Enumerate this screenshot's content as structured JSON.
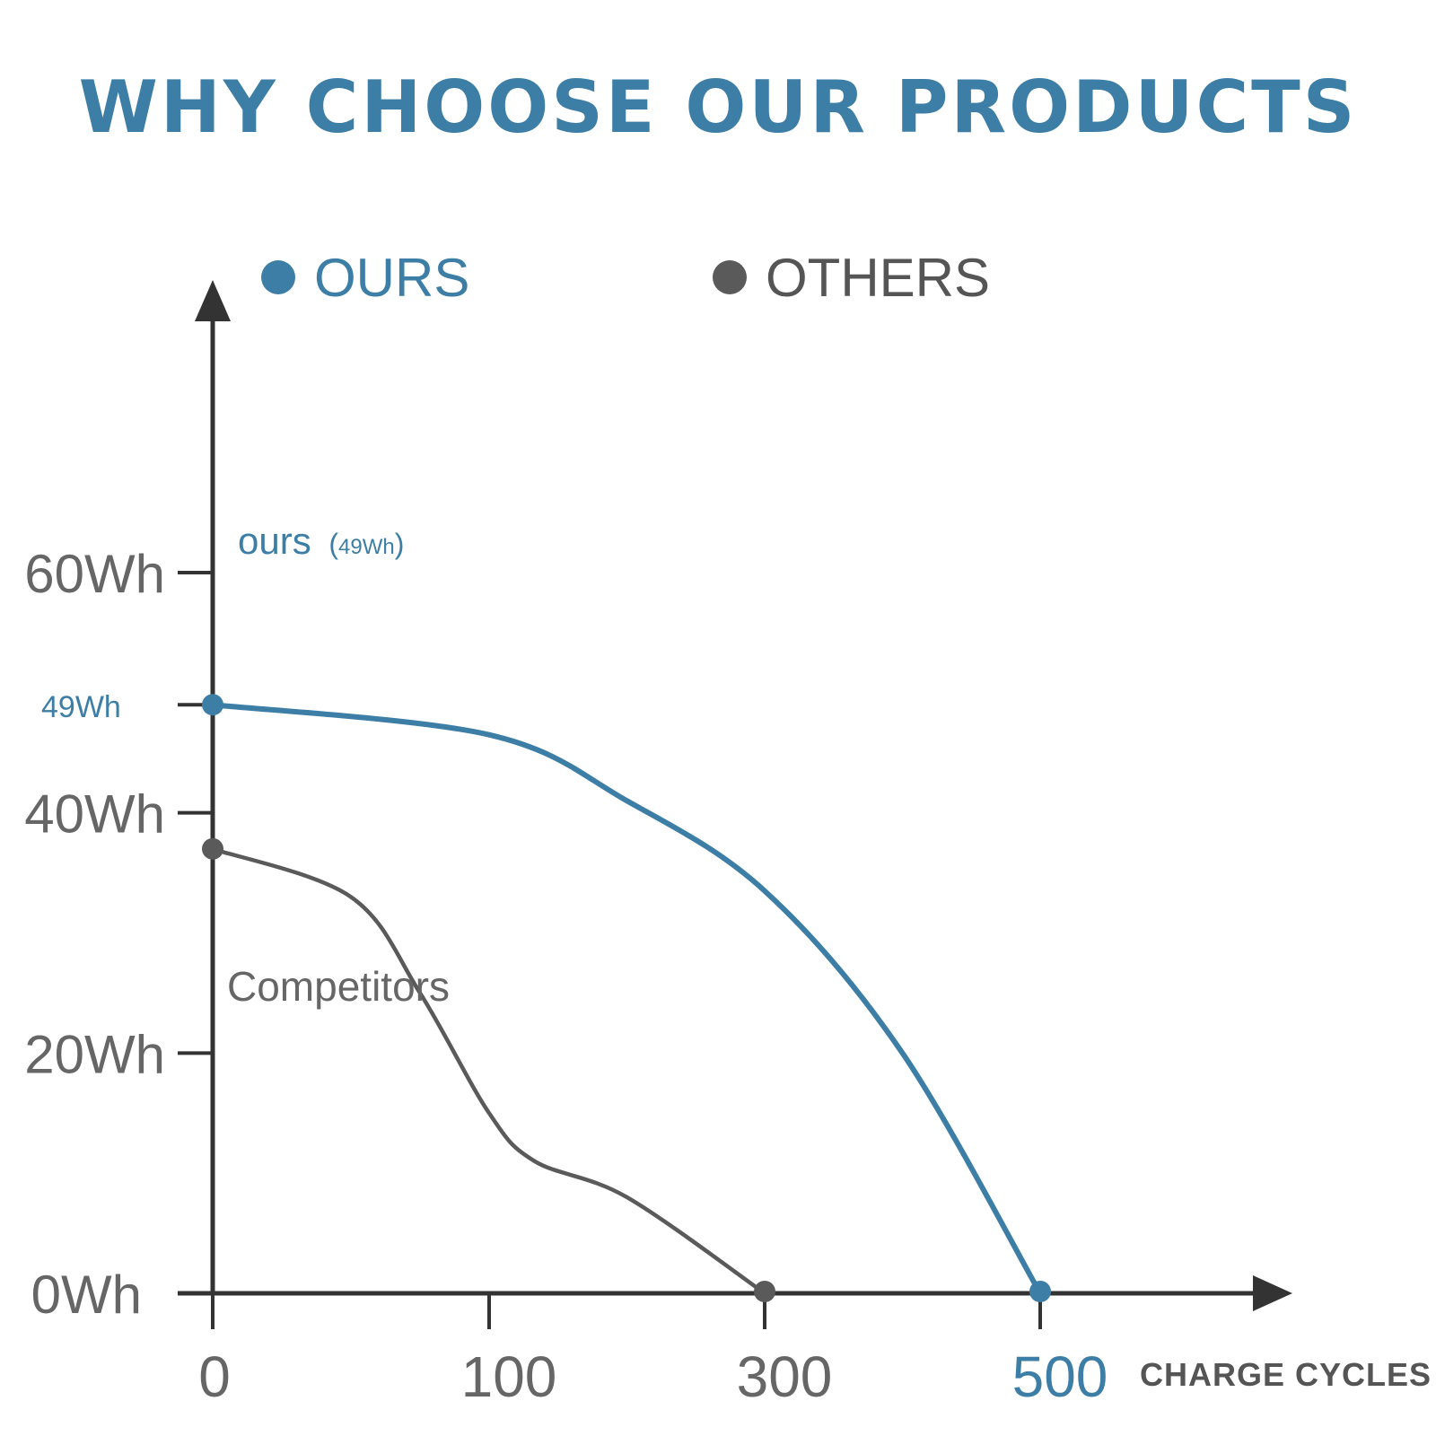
{
  "colors": {
    "ours": "#3d7ea6",
    "others": "#5a5a5a",
    "axis": "#333333",
    "grid": "#d9d9d9",
    "tick_text": "#666666"
  },
  "chart_data": {
    "type": "line",
    "title": "WHY CHOOSE OUR PRODUCTS",
    "xlabel": "CHARGE CYCLES",
    "ylabel": "",
    "x_ticks": [
      "0",
      "100",
      "300",
      "500"
    ],
    "y_ticks": [
      "0Wh",
      "20Wh",
      "40Wh",
      "60Wh"
    ],
    "y_marker_label": "49Wh",
    "grid": true,
    "legend": {
      "placement": "top",
      "entries": [
        "OURS",
        "OTHERS"
      ]
    },
    "annotations": {
      "ours_label": "ours",
      "ours_value": "49Wh",
      "others_label": "Competitors"
    },
    "series": [
      {
        "name": "OURS",
        "color": "#3d7ea6",
        "points": [
          {
            "x": 0,
            "y": 49
          },
          {
            "x": 100,
            "y": 46.5
          },
          {
            "x": 200,
            "y": 41
          },
          {
            "x": 300,
            "y": 33.5
          },
          {
            "x": 400,
            "y": 20
          },
          {
            "x": 500,
            "y": 0
          }
        ]
      },
      {
        "name": "OTHERS",
        "color": "#5a5a5a",
        "points": [
          {
            "x": 0,
            "y": 37
          },
          {
            "x": 50,
            "y": 33
          },
          {
            "x": 75,
            "y": 25
          },
          {
            "x": 100,
            "y": 15
          },
          {
            "x": 133,
            "y": 11
          },
          {
            "x": 200,
            "y": 8
          },
          {
            "x": 300,
            "y": 0
          }
        ]
      }
    ]
  }
}
